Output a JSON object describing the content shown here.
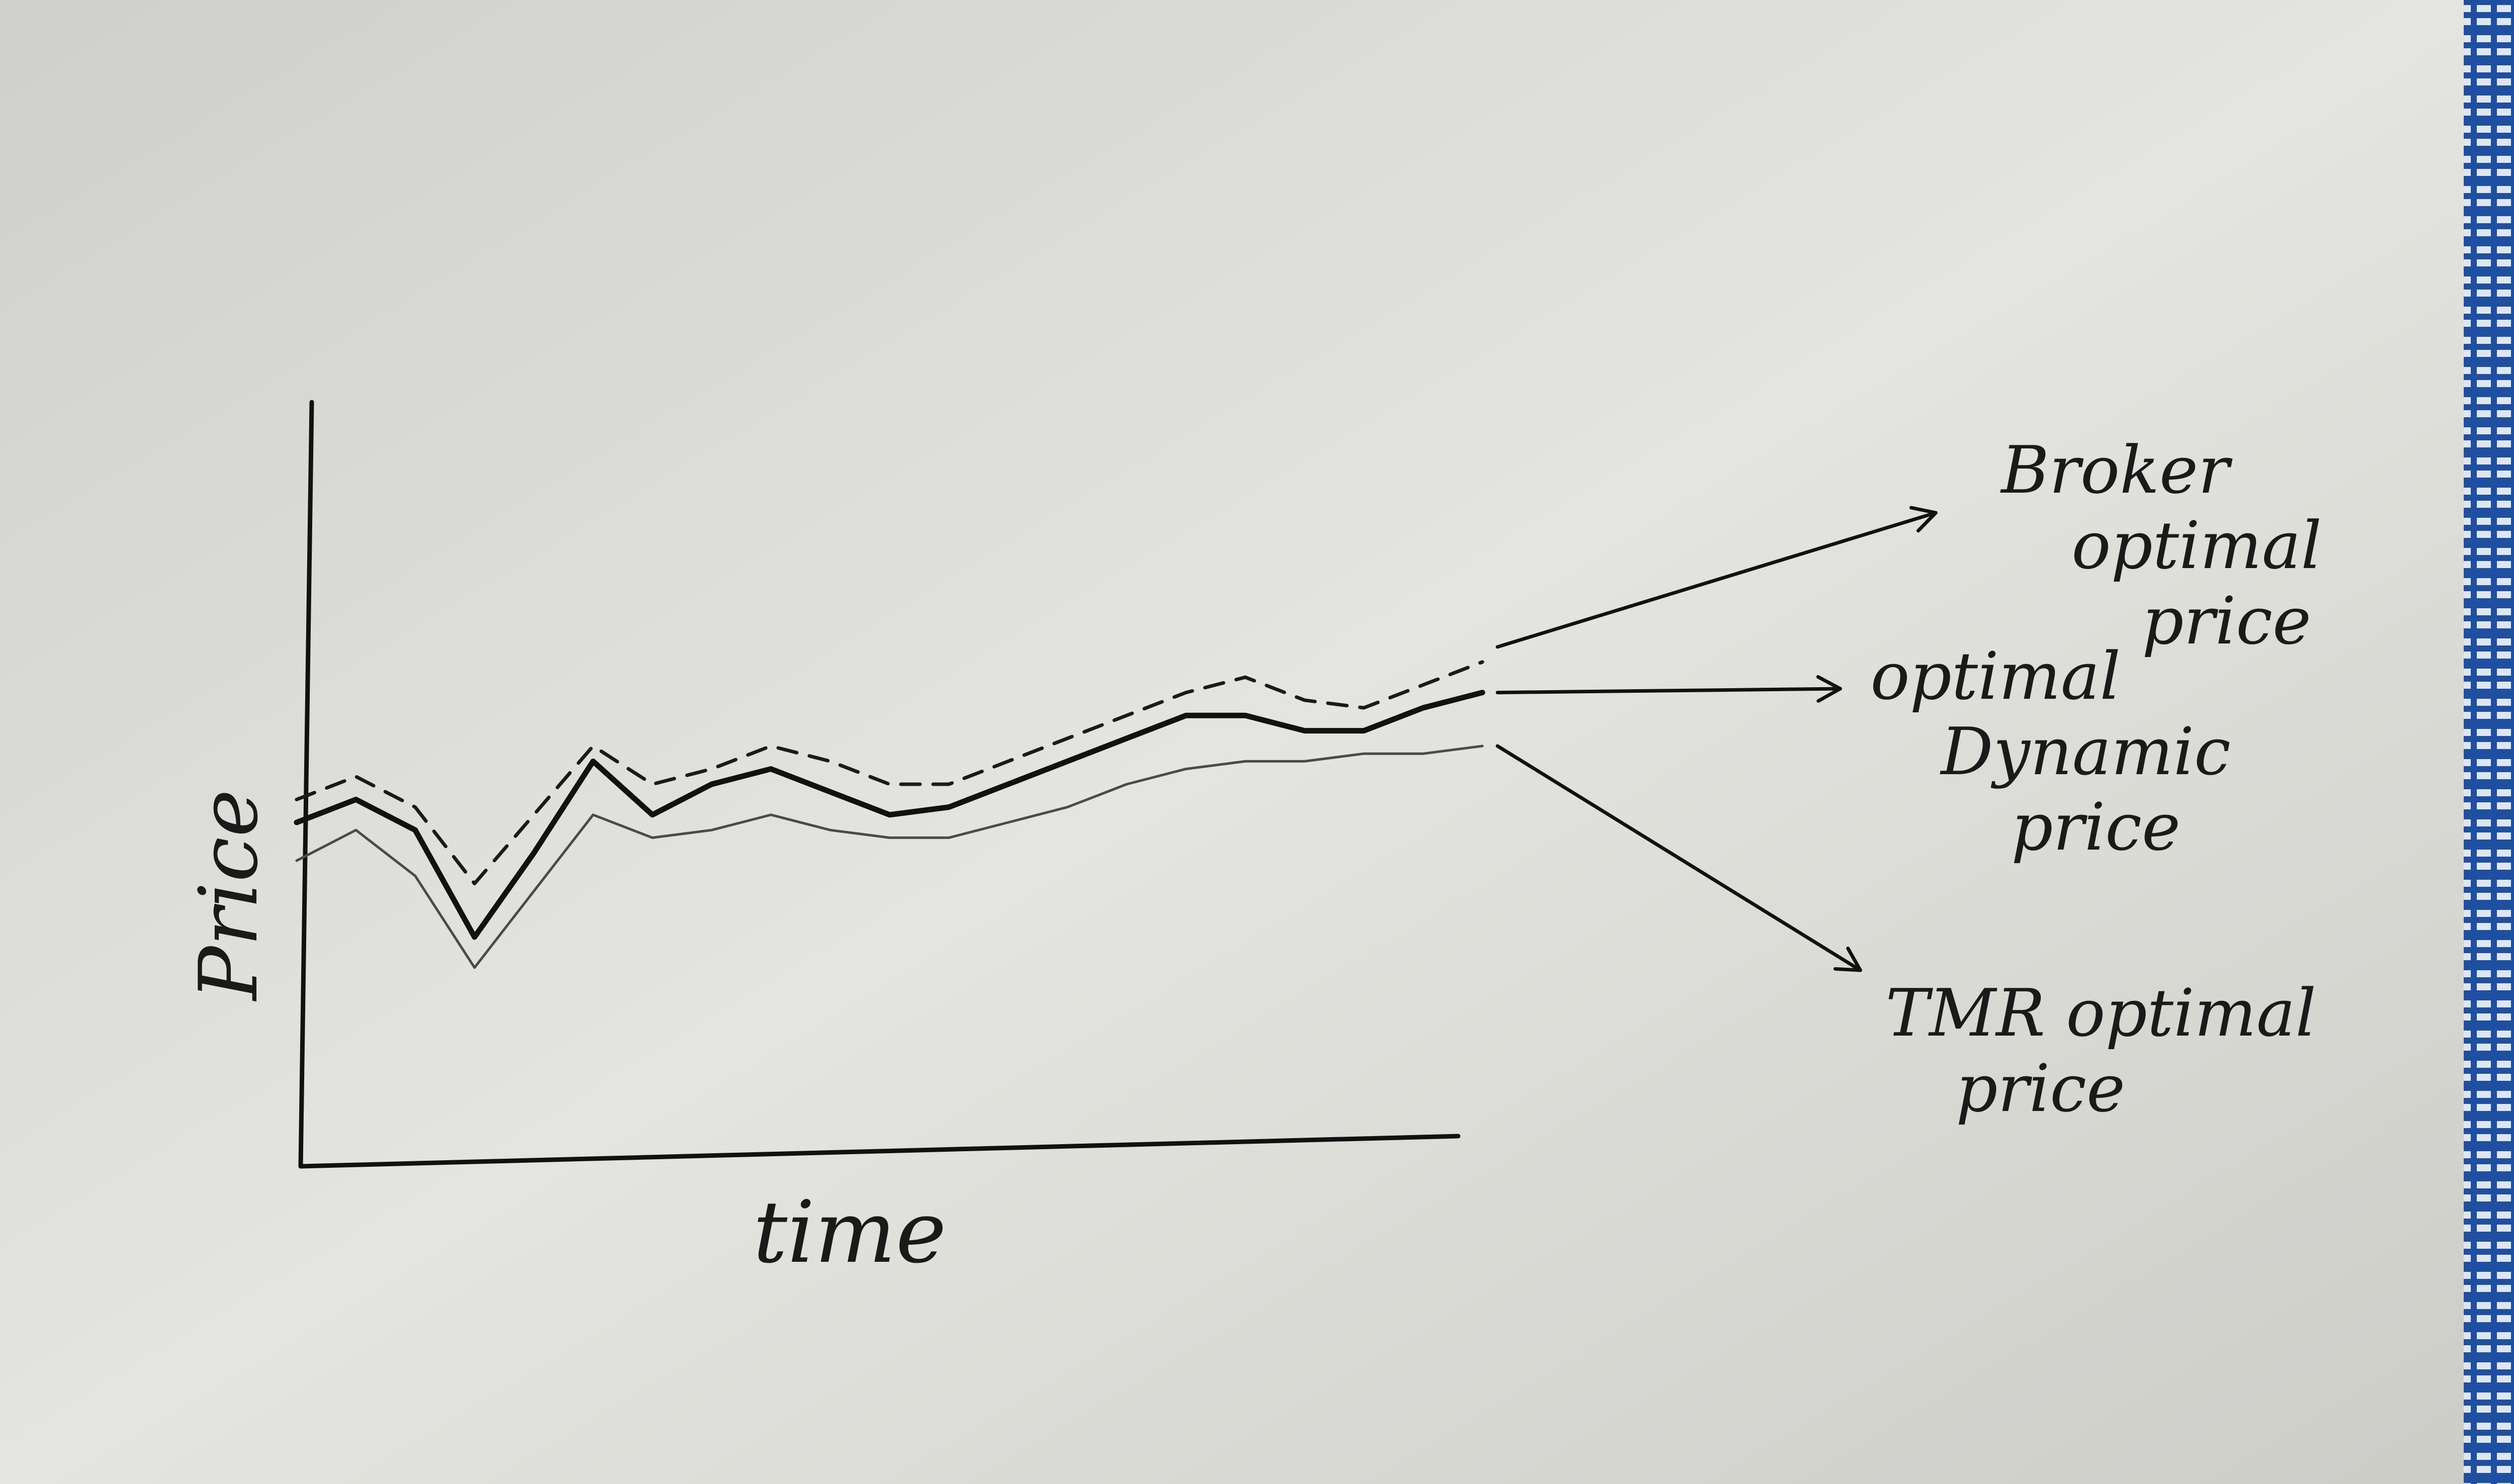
{
  "chart_data": {
    "type": "line",
    "title": "",
    "xlabel": "time",
    "ylabel": "Price",
    "grid": false,
    "legend": "right, arrow annotations",
    "x": [
      0,
      1,
      2,
      3,
      4,
      5,
      6,
      7,
      8,
      9,
      10,
      11,
      12,
      13,
      14,
      15,
      16,
      17,
      18,
      19,
      20
    ],
    "xlim": [
      0,
      24
    ],
    "ylim": [
      0,
      10
    ],
    "series": [
      {
        "name": "Broker optimal price",
        "style": "dashed",
        "color": "#1a1a1a",
        "values": [
          4.8,
          5.1,
          4.7,
          3.7,
          4.6,
          5.5,
          5.0,
          5.2,
          5.5,
          5.3,
          5.0,
          5.0,
          5.3,
          5.6,
          5.9,
          6.2,
          6.4,
          6.1,
          6.0,
          6.3,
          6.6
        ]
      },
      {
        "name": "optimal Dynamic price",
        "style": "solid",
        "color": "#111111",
        "values": [
          4.5,
          4.8,
          4.4,
          3.0,
          4.1,
          5.3,
          4.6,
          5.0,
          5.2,
          4.9,
          4.6,
          4.7,
          5.0,
          5.3,
          5.6,
          5.9,
          5.9,
          5.7,
          5.7,
          6.0,
          6.2
        ]
      },
      {
        "name": "TMR optimal price",
        "style": "thin",
        "color": "#4a4a4a",
        "values": [
          4.0,
          4.4,
          3.8,
          2.6,
          3.6,
          4.6,
          4.3,
          4.4,
          4.6,
          4.4,
          4.3,
          4.3,
          4.5,
          4.7,
          5.0,
          5.2,
          5.3,
          5.3,
          5.4,
          5.4,
          5.5
        ]
      }
    ]
  }
}
